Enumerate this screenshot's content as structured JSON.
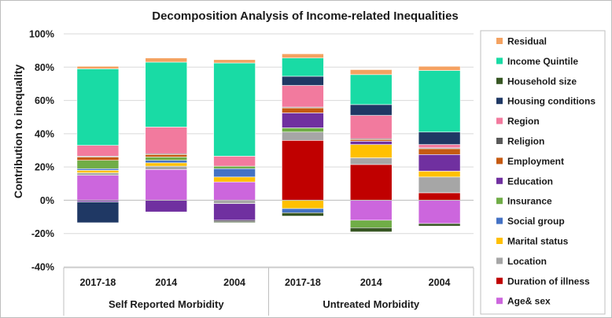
{
  "chart_data": {
    "type": "stacked-bar",
    "title": "Decomposition Analysis of Income-related Inequalities",
    "ylabel": "Contribution to inequality",
    "ylim": [
      -40,
      100
    ],
    "yticks": [
      -40,
      -20,
      0,
      20,
      40,
      60,
      80,
      100
    ],
    "ytick_labels": [
      "-40%",
      "-20%",
      "0%",
      "20%",
      "40%",
      "60%",
      "80%",
      "100%"
    ],
    "categories": [
      "2017-18",
      "2014",
      "2004",
      "2017-18",
      "2014",
      "2004"
    ],
    "groups": [
      {
        "label": "Self Reported Morbidity",
        "span": [
          0,
          2
        ]
      },
      {
        "label": "Untreated Morbidity",
        "span": [
          3,
          5
        ]
      }
    ],
    "series": [
      {
        "name": "Age& sex",
        "color": "#cc66dd",
        "values": [
          15,
          18.5,
          11,
          0,
          -12,
          -14
        ]
      },
      {
        "name": "Duration of illness",
        "color": "#c00000",
        "values": [
          0,
          0,
          0,
          36,
          21.5,
          4.5
        ]
      },
      {
        "name": "Location",
        "color": "#a6a6a6",
        "values": [
          1.5,
          2,
          -2,
          5,
          4,
          9.5
        ]
      },
      {
        "name": "Marital status",
        "color": "#ffc000",
        "values": [
          1.5,
          2,
          3,
          -5,
          8,
          3.5
        ]
      },
      {
        "name": "Social group",
        "color": "#4472c4",
        "values": [
          1,
          1.5,
          5,
          -2.5,
          0,
          0
        ]
      },
      {
        "name": "Insurance",
        "color": "#70ad47",
        "values": [
          5,
          2,
          1.5,
          2.5,
          -4.5,
          0
        ]
      },
      {
        "name": "Education",
        "color": "#7030a0",
        "values": [
          -1,
          -7,
          -10,
          9,
          2,
          10
        ]
      },
      {
        "name": "Employment",
        "color": "#c55a11",
        "values": [
          2,
          1.5,
          0,
          3,
          1,
          3.5
        ]
      },
      {
        "name": "Religion",
        "color": "#595959",
        "values": [
          0.5,
          0.5,
          -1,
          0.5,
          0.5,
          0.5
        ]
      },
      {
        "name": "Region",
        "color": "#f27a9e",
        "values": [
          6.5,
          16,
          6,
          13,
          14,
          2
        ]
      },
      {
        "name": "Housing conditions",
        "color": "#1f3864",
        "values": [
          -12.5,
          0,
          0,
          5.5,
          6.5,
          7.5
        ]
      },
      {
        "name": "Household size",
        "color": "#375623",
        "values": [
          0,
          0,
          -0.5,
          -2,
          -2.5,
          -1.5
        ]
      },
      {
        "name": "Income Quintile",
        "color": "#19dba5",
        "values": [
          46,
          39,
          56,
          11,
          18,
          37
        ]
      },
      {
        "name": "Residual",
        "color": "#f4a261",
        "values": [
          1.5,
          2.5,
          2,
          2.5,
          3,
          2.5
        ]
      }
    ],
    "legend": [
      "Residual",
      "Income Quintile",
      "Household size",
      "Housing conditions",
      "Region",
      "Religion",
      "Employment",
      "Education",
      "Insurance",
      "Social group",
      "Marital status",
      "Location",
      "Duration of illness",
      "Age& sex"
    ],
    "legend_position": "right"
  }
}
